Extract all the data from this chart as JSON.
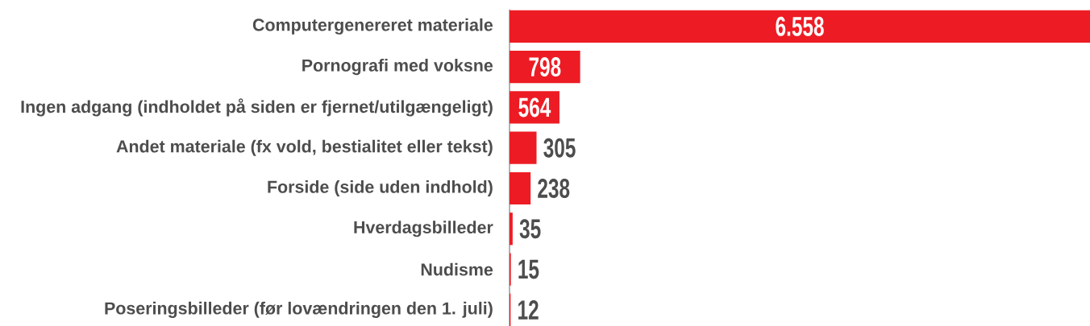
{
  "chart_data": {
    "type": "bar",
    "orientation": "horizontal",
    "categories": [
      "Computergenereret materiale",
      "Pornografi med voksne",
      "Ingen adgang (indholdet på siden er fjernet/utilgængeligt)",
      "Andet materiale (fx vold, bestialitet eller tekst)",
      "Forside (side uden indhold)",
      "Hverdagsbilleder",
      "Nudisme",
      "Poseringsbilleder (før lovændringen den 1. juli)"
    ],
    "values": [
      6558,
      798,
      564,
      305,
      238,
      35,
      15,
      12
    ],
    "value_labels": [
      "6.558",
      "798",
      "564",
      "305",
      "238",
      "35",
      "15",
      "12"
    ],
    "color": "#ed1c24",
    "tick_labels": "y"
  }
}
